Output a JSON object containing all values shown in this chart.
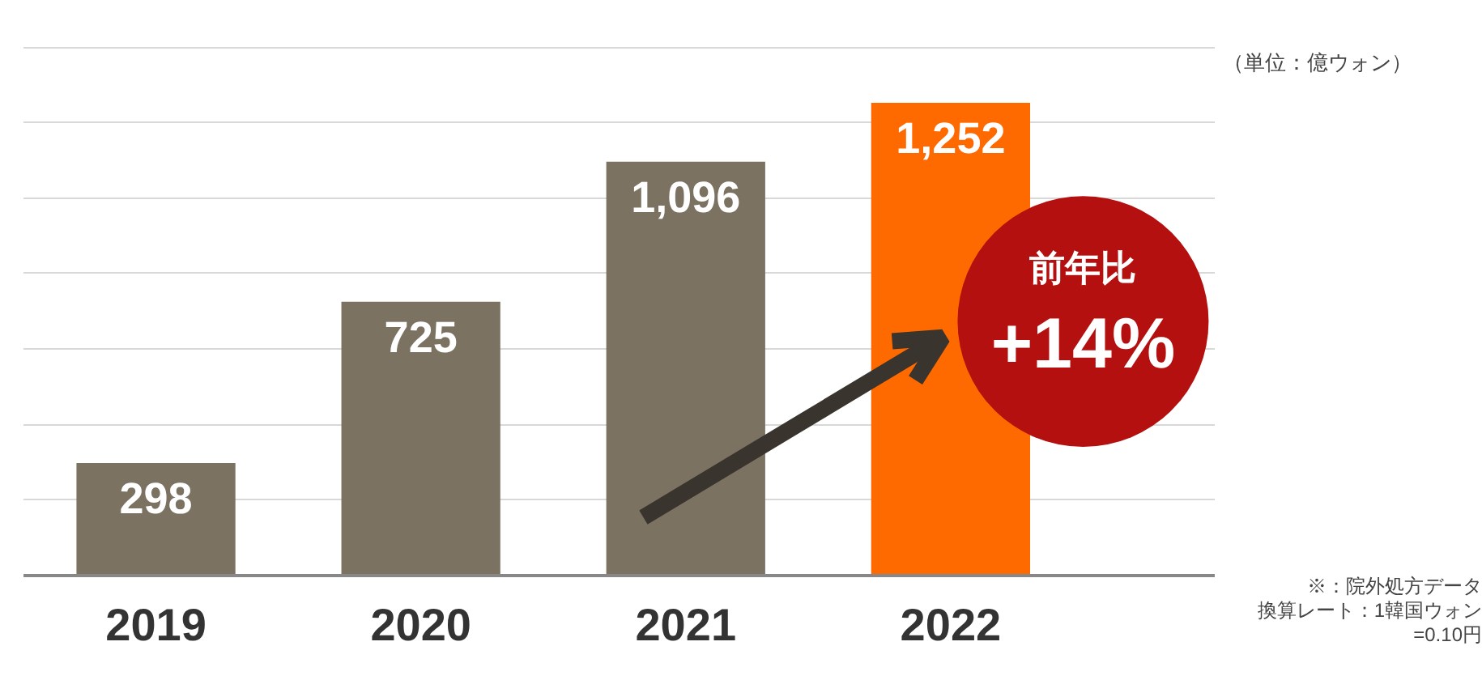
{
  "chart_data": {
    "type": "bar",
    "categories": [
      "2019",
      "2020",
      "2021",
      "2022"
    ],
    "values": [
      298,
      725,
      1096,
      1252
    ],
    "value_labels": [
      "298",
      "725",
      "1,096",
      "1,252"
    ],
    "colors": [
      "#7b7262",
      "#7b7262",
      "#7b7262",
      "#ff6a00"
    ],
    "grid": "y",
    "tick_labels": "x",
    "annotations": [
      "（単位：億ウォン）",
      "前年比\n+14%",
      "※：院外処方データ",
      "換算レート：1韓国ウォン=0.10円"
    ]
  }
}
